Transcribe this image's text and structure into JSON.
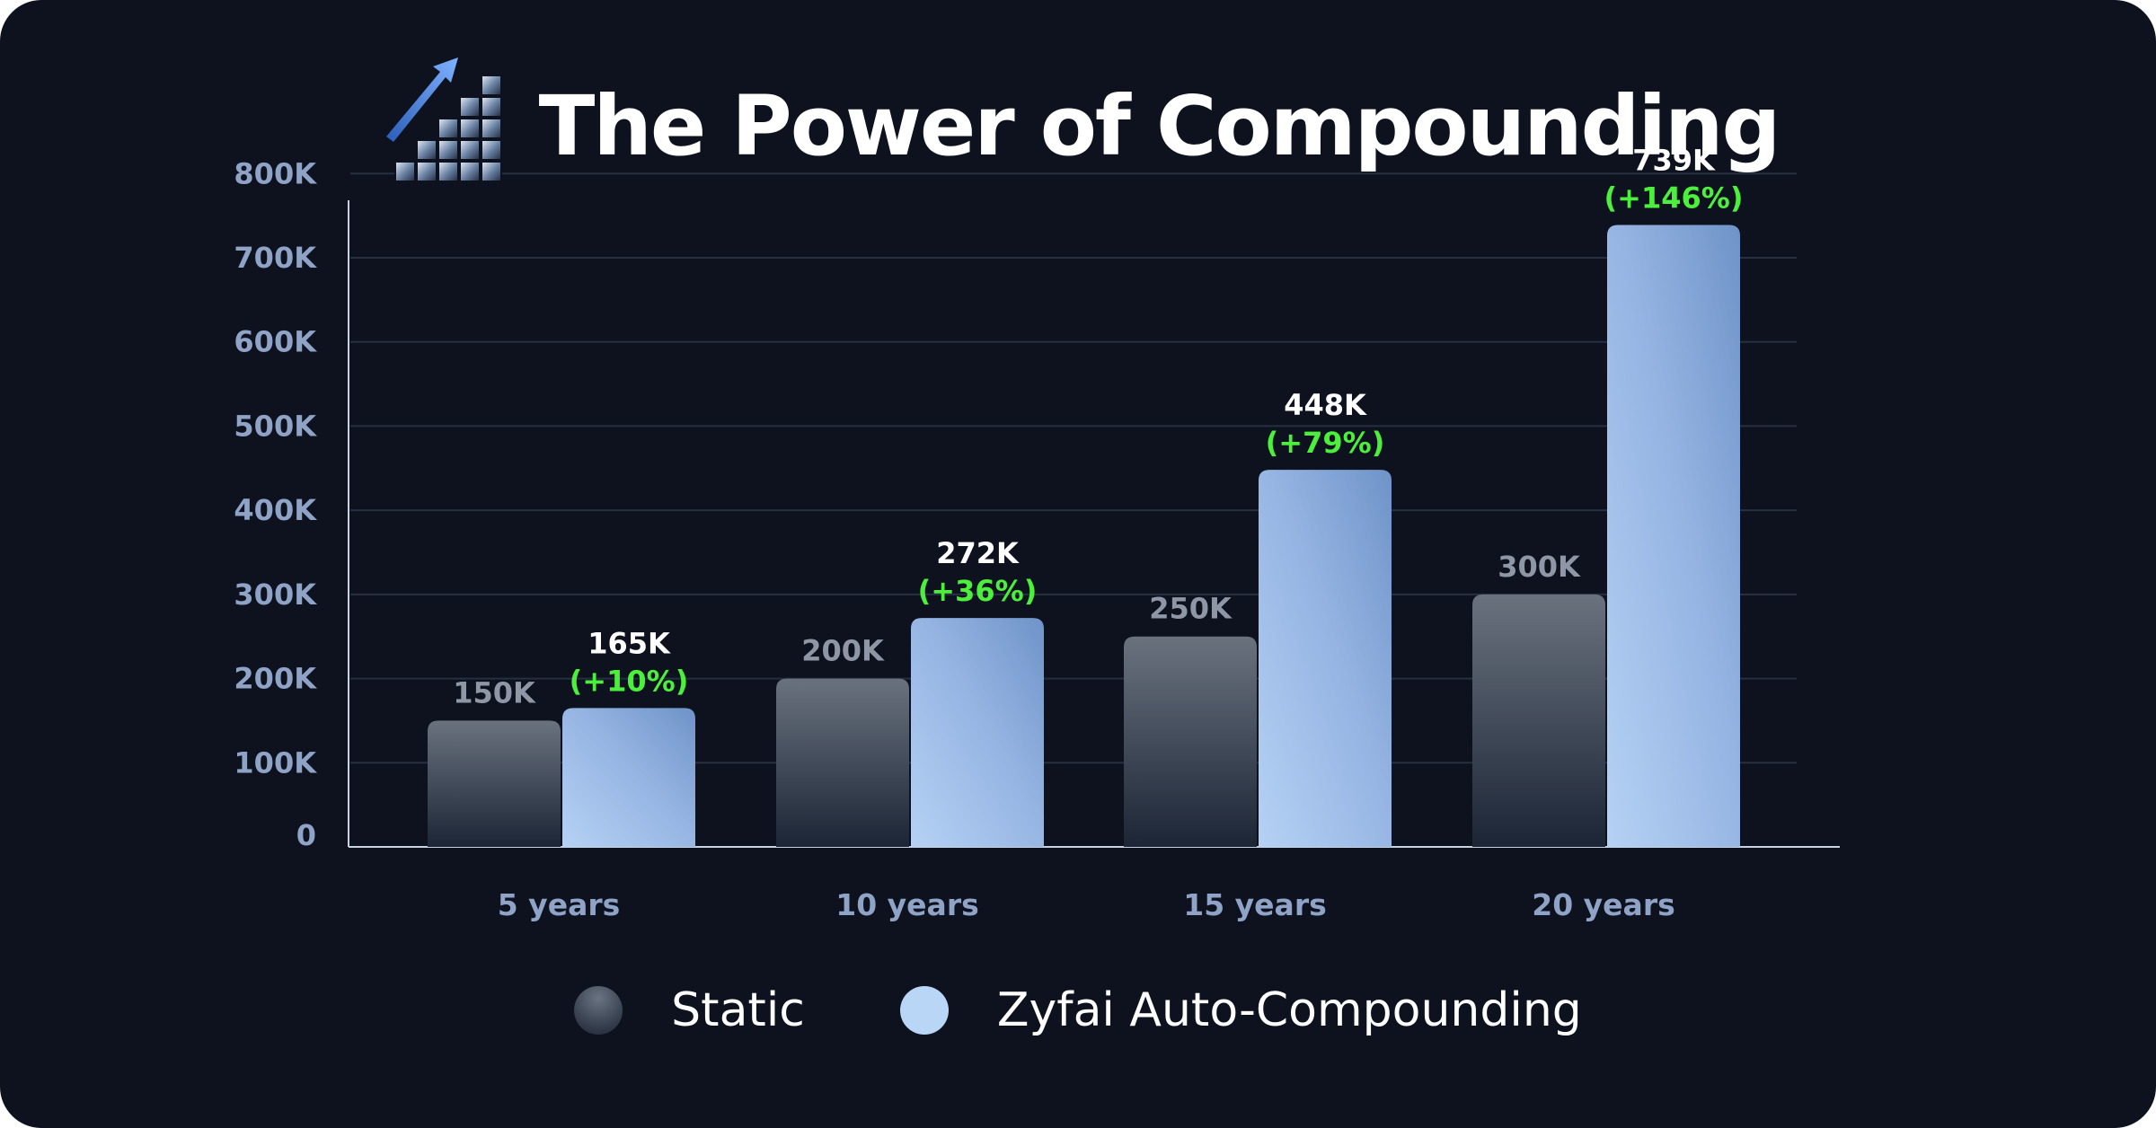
{
  "title": "The Power of Compounding",
  "colors": {
    "background": "#0d121e",
    "static_top": "#6a727e",
    "static_bottom": "#1c2535",
    "zyfai_light": "#b5d1f4",
    "zyfai_dark": "#6f93c8",
    "axis_text": "#8fa3c7",
    "percent": "#4cf03c"
  },
  "legend": {
    "static": "Static",
    "zyfai": "Zyfai Auto-Compounding"
  },
  "chart_data": {
    "type": "bar",
    "categories": [
      "5 years",
      "10 years",
      "15 years",
      "20 years"
    ],
    "series": [
      {
        "name": "Static",
        "values": [
          150000,
          200000,
          250000,
          300000
        ],
        "labels": [
          "150K",
          "200K",
          "250K",
          "300K"
        ]
      },
      {
        "name": "Zyfai Auto-Compounding",
        "values": [
          165000,
          272000,
          448000,
          739000
        ],
        "labels": [
          "165K",
          "272K",
          "448K",
          "739K"
        ],
        "percent_labels": [
          "(+10%)",
          "(+36%)",
          "(+79%)",
          "(+146%)"
        ]
      }
    ],
    "ylim": [
      0,
      800000
    ],
    "yticks": [
      0,
      100000,
      200000,
      300000,
      400000,
      500000,
      600000,
      700000,
      800000
    ],
    "ytick_labels": [
      "0",
      "100K",
      "200K",
      "300K",
      "400K",
      "500K",
      "600K",
      "700K",
      "800K"
    ],
    "grid": true,
    "legend_position": "bottom-center"
  }
}
